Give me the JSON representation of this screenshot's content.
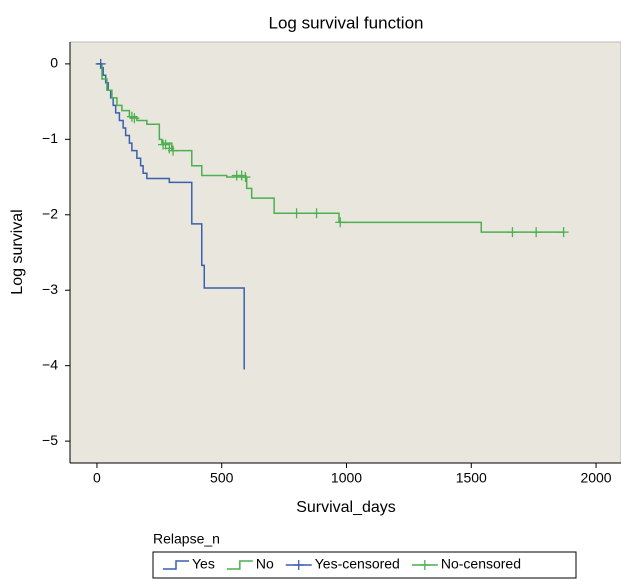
{
  "chart_data": {
    "type": "line",
    "step": true,
    "title": "Log survival function",
    "xlabel": "Survival_days",
    "ylabel": "Log survival",
    "legend_title": "Relapse_n",
    "legend": "bottom",
    "xlim": [
      -108,
      2100
    ],
    "ylim": [
      -5.29,
      0.29
    ],
    "xticks": [
      0,
      500,
      1000,
      1500,
      2000
    ],
    "yticks": [
      0,
      {
        "value": -1,
        "label": "−1"
      },
      {
        "value": -2,
        "label": "−2"
      },
      {
        "value": -3,
        "label": "−3"
      },
      {
        "value": -4,
        "label": "−4"
      },
      {
        "value": -5,
        "label": "−5"
      }
    ],
    "series": [
      {
        "name": "Yes",
        "color": "#3a5fae",
        "marker": "none",
        "x": [
          0,
          15,
          25,
          35,
          45,
          55,
          65,
          75,
          90,
          105,
          115,
          130,
          140,
          160,
          175,
          185,
          200,
          290,
          380,
          420,
          430,
          590
        ],
        "values": [
          0,
          -0.05,
          -0.15,
          -0.25,
          -0.35,
          -0.45,
          -0.55,
          -0.65,
          -0.75,
          -0.85,
          -0.95,
          -1.05,
          -1.15,
          -1.25,
          -1.35,
          -1.45,
          -1.52,
          -1.57,
          -2.12,
          -2.67,
          -2.97,
          -4.05
        ]
      },
      {
        "name": "No",
        "color": "#4caf50",
        "marker": "none",
        "x": [
          0,
          20,
          40,
          60,
          80,
          100,
          130,
          160,
          200,
          250,
          260,
          300,
          380,
          420,
          520,
          600,
          620,
          710,
          970,
          1540,
          1870
        ],
        "values": [
          0,
          -0.2,
          -0.35,
          -0.45,
          -0.55,
          -0.62,
          -0.7,
          -0.75,
          -0.8,
          -1.0,
          -1.05,
          -1.15,
          -1.35,
          -1.48,
          -1.5,
          -1.65,
          -1.78,
          -1.98,
          -2.1,
          -2.23,
          -2.23
        ]
      },
      {
        "name": "Yes-censored",
        "color": "#3a5fae",
        "marker": "+",
        "x": [
          15
        ],
        "values": [
          0
        ]
      },
      {
        "name": "No-censored",
        "color": "#4caf50",
        "marker": "+",
        "x": [
          140,
          150,
          265,
          275,
          290,
          305,
          560,
          580,
          595,
          800,
          880,
          975,
          1665,
          1760,
          1870
        ],
        "values": [
          -0.7,
          -0.72,
          -1.07,
          -1.07,
          -1.12,
          -1.15,
          -1.48,
          -1.48,
          -1.5,
          -1.98,
          -1.98,
          -2.1,
          -2.23,
          -2.23,
          -2.23
        ]
      }
    ]
  }
}
